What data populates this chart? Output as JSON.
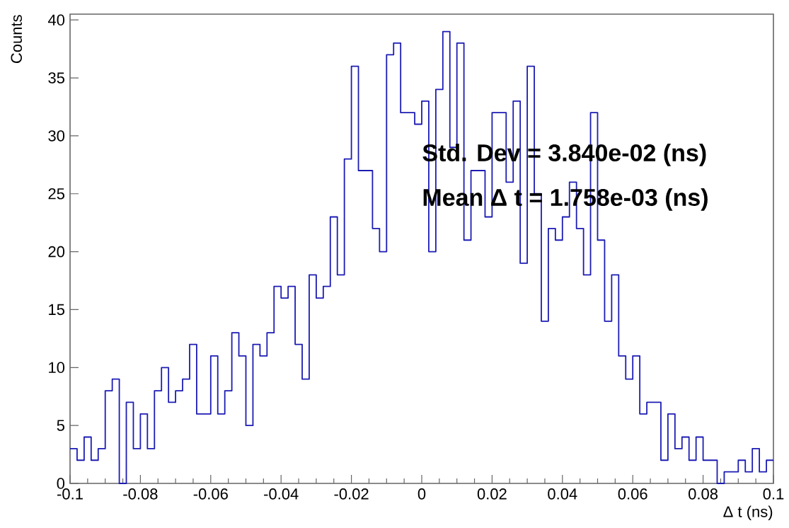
{
  "chart_data": {
    "type": "histogram",
    "xlabel": "Δ t (ns)",
    "ylabel": "Counts",
    "annotations": [
      "Std. Dev = 3.840e-02 (ns)",
      "Mean   Δ t = 1.758e-03 (ns)"
    ],
    "bins": [
      -0.1,
      -0.098,
      -0.096,
      -0.094,
      -0.092,
      -0.09,
      -0.088,
      -0.086,
      -0.084,
      -0.082,
      -0.08,
      -0.078,
      -0.076,
      -0.074,
      -0.072,
      -0.07,
      -0.068,
      -0.066,
      -0.064,
      -0.062,
      -0.06,
      -0.058,
      -0.056,
      -0.054,
      -0.052,
      -0.05,
      -0.048,
      -0.046,
      -0.044,
      -0.042,
      -0.04,
      -0.038,
      -0.036,
      -0.034,
      -0.032,
      -0.03,
      -0.028,
      -0.026,
      -0.024,
      -0.022,
      -0.02,
      -0.018,
      -0.016,
      -0.014,
      -0.012,
      -0.01,
      -0.008,
      -0.006,
      -0.004,
      -0.002,
      0,
      0.002,
      0.004,
      0.006,
      0.008,
      0.01,
      0.012,
      0.014,
      0.016,
      0.018,
      0.02,
      0.022,
      0.024,
      0.026,
      0.028,
      0.03,
      0.032,
      0.034,
      0.036,
      0.038,
      0.04,
      0.042,
      0.044,
      0.046,
      0.048,
      0.05,
      0.052,
      0.054,
      0.056,
      0.058,
      0.06,
      0.062,
      0.064,
      0.066,
      0.068,
      0.07,
      0.072,
      0.074,
      0.076,
      0.078,
      0.08,
      0.082,
      0.084,
      0.086,
      0.088,
      0.09,
      0.092,
      0.094,
      0.096,
      0.098,
      0.1
    ],
    "values": [
      3,
      2,
      4,
      2,
      3,
      8,
      9,
      0,
      7,
      3,
      6,
      3,
      8,
      10,
      7,
      8,
      9,
      12,
      6,
      6,
      11,
      6,
      8,
      13,
      11,
      5,
      12,
      11,
      13,
      17,
      16,
      17,
      12,
      9,
      18,
      16,
      17,
      23,
      18,
      28,
      36,
      27,
      27,
      22,
      20,
      37,
      38,
      32,
      32,
      31,
      33,
      20,
      34,
      39,
      29,
      38,
      21,
      27,
      27,
      23,
      32,
      32,
      26,
      33,
      19,
      36,
      25,
      14,
      22,
      21,
      23,
      26,
      22,
      18,
      32,
      21,
      14,
      18,
      11,
      9,
      11,
      6,
      7,
      7,
      2,
      6,
      3,
      4,
      2,
      4,
      2,
      2,
      0,
      1,
      1,
      2,
      1,
      3,
      1,
      2
    ],
    "color": "#1c1cb4",
    "xlim": [
      -0.1,
      0.1
    ],
    "ylim": [
      0,
      40.5
    ],
    "xticks": [
      -0.1,
      -0.08,
      -0.06,
      -0.04,
      -0.02,
      0,
      0.02,
      0.04,
      0.06,
      0.08,
      0.1
    ],
    "yticks": [
      0,
      5,
      10,
      15,
      20,
      25,
      30,
      35,
      40
    ]
  }
}
